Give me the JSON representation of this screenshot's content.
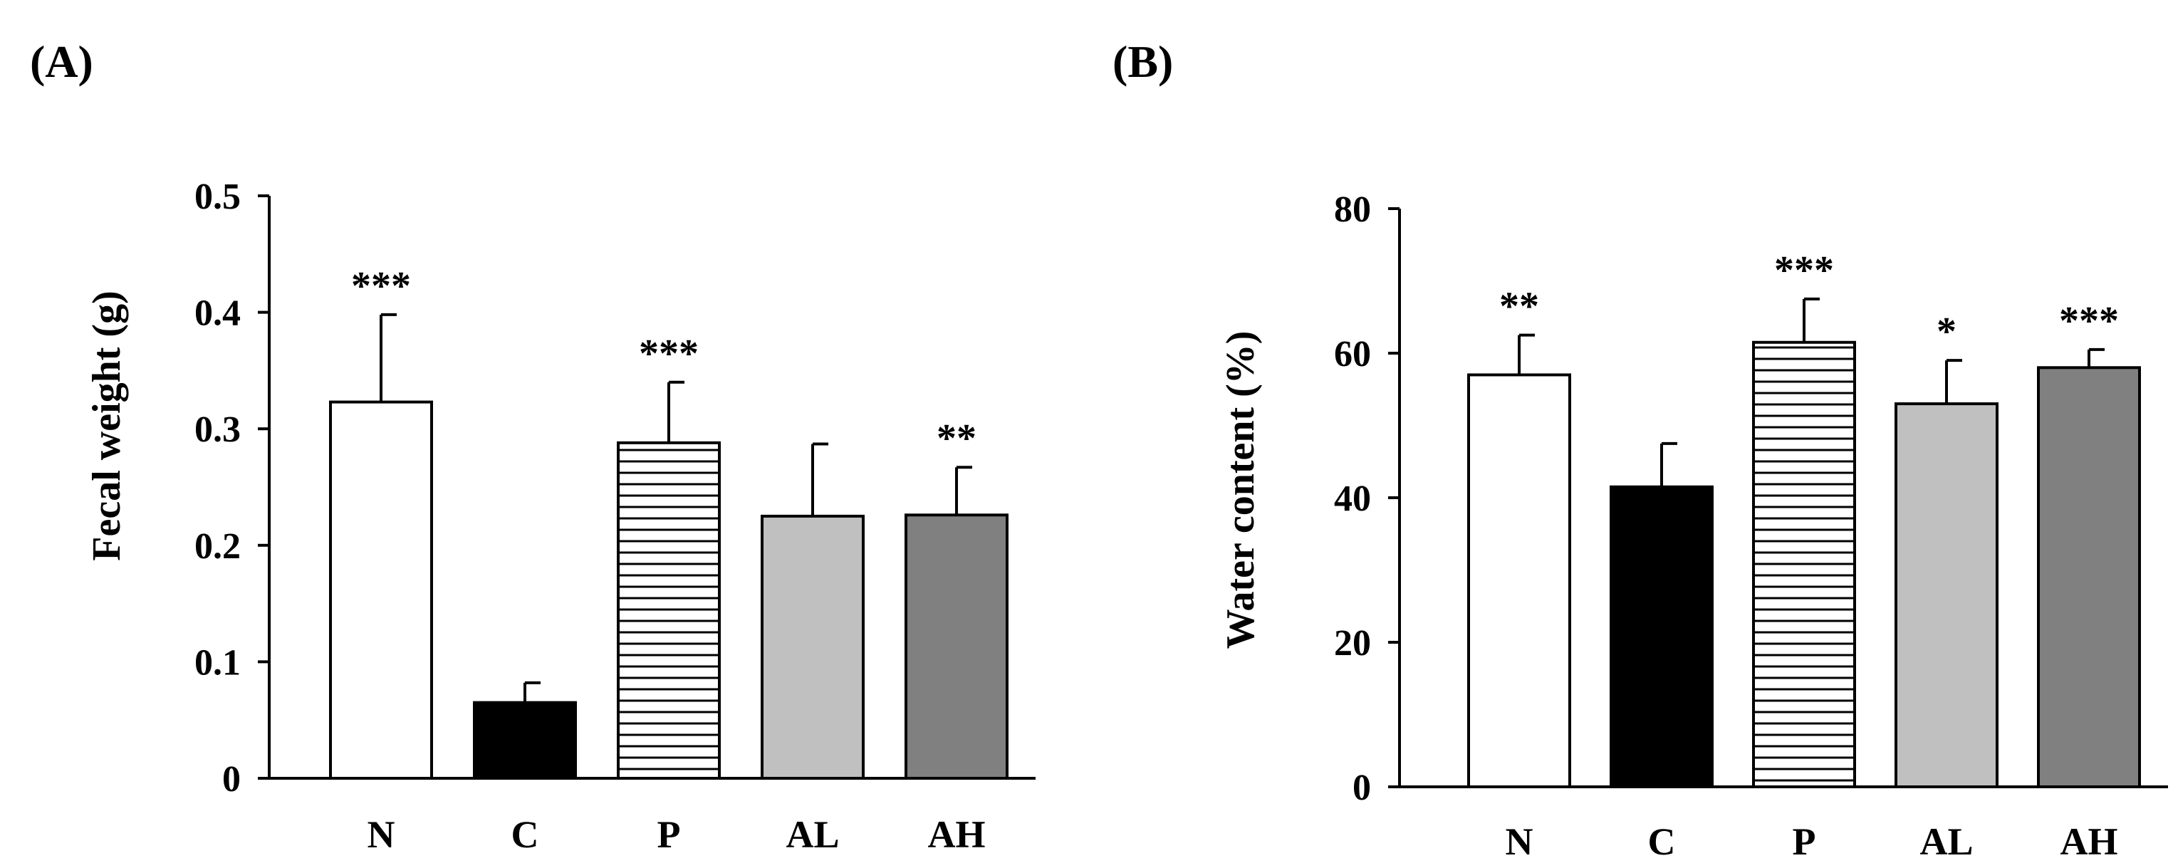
{
  "chart_data": [
    {
      "type": "bar",
      "panel_label": "(A)",
      "title": "",
      "xlabel": "",
      "ylabel": "Fecal weight (g)",
      "ylim": [
        0,
        0.5
      ],
      "yticks": [
        0,
        0.1,
        0.2,
        0.3,
        0.4,
        0.5
      ],
      "ytick_labels": [
        "0",
        "0.1",
        "0.2",
        "0.3",
        "0.4",
        "0.5"
      ],
      "categories": [
        "N",
        "C",
        "P",
        "AL",
        "AH"
      ],
      "values": [
        0.323,
        0.065,
        0.288,
        0.225,
        0.226
      ],
      "errors": [
        0.075,
        0.017,
        0.052,
        0.062,
        0.041
      ],
      "significance": [
        "***",
        "",
        "***",
        "",
        "**"
      ],
      "fills": [
        "white",
        "black",
        "hlines",
        "lightgray",
        "darkgray"
      ]
    },
    {
      "type": "bar",
      "panel_label": "(B)",
      "title": "",
      "xlabel": "",
      "ylabel": "Water content (%)",
      "ylim": [
        0,
        80
      ],
      "yticks": [
        0,
        20,
        40,
        60,
        80
      ],
      "ytick_labels": [
        "0",
        "20",
        "40",
        "60",
        "80"
      ],
      "categories": [
        "N",
        "C",
        "P",
        "AL",
        "AH"
      ],
      "values": [
        57,
        41.5,
        61.5,
        53,
        58
      ],
      "errors": [
        5.5,
        6,
        6,
        6,
        2.5
      ],
      "significance": [
        "**",
        "",
        "***",
        "*",
        "***"
      ],
      "fills": [
        "white",
        "black",
        "hlines",
        "lightgray",
        "darkgray"
      ]
    }
  ],
  "colors": {
    "white": "#ffffff",
    "black": "#000000",
    "lightgray": "#c0c0c0",
    "darkgray": "#808080",
    "axis": "#000000"
  }
}
